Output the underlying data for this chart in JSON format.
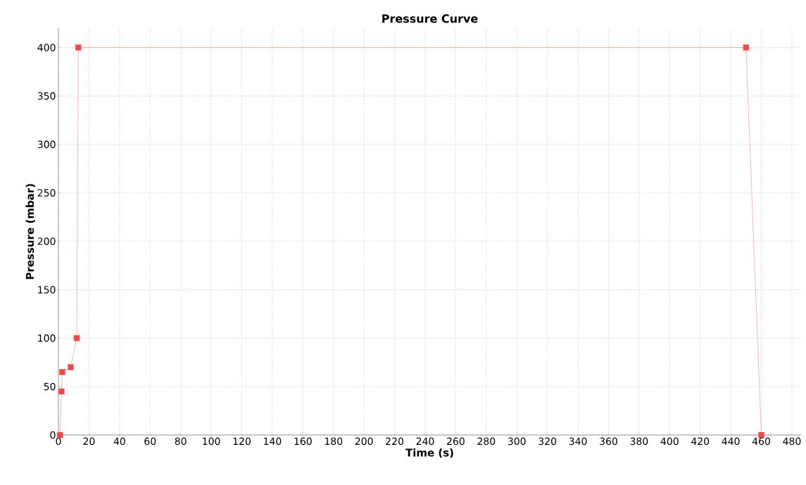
{
  "chart_data": {
    "type": "line",
    "title": "Pressure Curve",
    "xlabel": "Time (s)",
    "ylabel": "Pressure (mbar)",
    "x": [
      1,
      2,
      2.5,
      8,
      12,
      13,
      450,
      460
    ],
    "series": [
      {
        "color": "#f04848",
        "values": [
          0,
          45,
          65,
          70,
          100,
          400,
          400,
          0
        ]
      }
    ],
    "xlim": [
      0,
      486
    ],
    "ylim": [
      0,
      420
    ],
    "xticks": [
      0,
      20,
      40,
      60,
      80,
      100,
      120,
      140,
      160,
      180,
      200,
      220,
      240,
      260,
      280,
      300,
      320,
      340,
      360,
      380,
      400,
      420,
      440,
      460,
      480
    ],
    "yticks": [
      0,
      50,
      100,
      150,
      200,
      250,
      300,
      350,
      400
    ],
    "grid": true,
    "marker": "square",
    "line_style": "solid",
    "legend": false
  }
}
